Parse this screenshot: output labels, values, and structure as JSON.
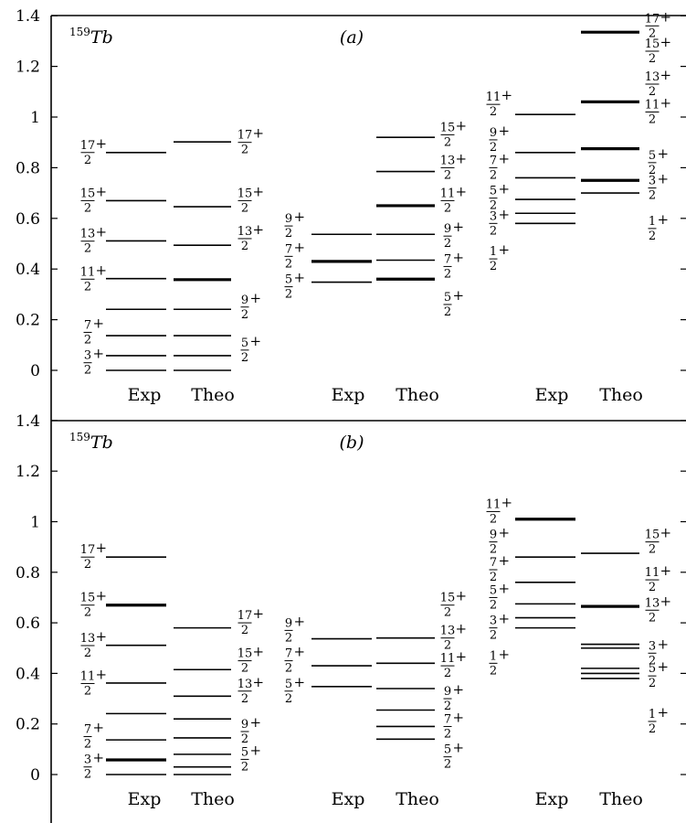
{
  "chart_data": [
    {
      "type": "level-scheme",
      "title": "159Tb",
      "title_parts": {
        "superscript": "159",
        "element": "Tb"
      },
      "panel_label": "(a)",
      "ylim": [
        0,
        1.4
      ],
      "yticks": [
        0,
        0.2,
        0.4,
        0.6,
        0.8,
        1,
        1.2,
        1.4
      ],
      "ytick_labels": [
        "0",
        "0.2",
        "0.4",
        "0.6",
        "0.8",
        "1",
        "1.2",
        "1.4"
      ],
      "grid": false,
      "groups": [
        {
          "exp": {
            "label": "Exp",
            "levels": [
              0,
              0.058,
              0.137,
              0.241,
              0.362,
              0.511,
              0.67,
              0.86
            ],
            "bold_levels": [],
            "spin_labels": [
              {
                "num": "3",
                "den": "2",
                "parity": "+",
                "y": 0.03
              },
              {
                "num": "7",
                "den": "2",
                "parity": "+",
                "y": 0.15
              },
              {
                "num": "11",
                "den": "2",
                "parity": "+",
                "y": 0.36
              },
              {
                "num": "13",
                "den": "2",
                "parity": "+",
                "y": 0.51
              },
              {
                "num": "15",
                "den": "2",
                "parity": "+",
                "y": 0.67
              },
              {
                "num": "17",
                "den": "2",
                "parity": "+",
                "y": 0.86
              }
            ]
          },
          "theo": {
            "label": "Theo",
            "levels": [
              0,
              0.058,
              0.137,
              0.241,
              0.358,
              0.494,
              0.646,
              0.902
            ],
            "bold_levels": [
              0.358
            ],
            "spin_labels": [
              {
                "num": "5",
                "den": "2",
                "parity": "+",
                "y": 0.08
              },
              {
                "num": "9",
                "den": "2",
                "parity": "+",
                "y": 0.25
              },
              {
                "num": "13",
                "den": "2",
                "parity": "+",
                "y": 0.52
              },
              {
                "num": "15",
                "den": "2",
                "parity": "+",
                "y": 0.67
              },
              {
                "num": "17",
                "den": "2",
                "parity": "+",
                "y": 0.9
              }
            ]
          }
        },
        {
          "exp": {
            "label": "Exp",
            "levels": [
              0.348,
              0.43,
              0.537
            ],
            "bold_levels": [
              0.43
            ],
            "spin_labels": [
              {
                "num": "5",
                "den": "2",
                "parity": "+",
                "y": 0.33
              },
              {
                "num": "7",
                "den": "2",
                "parity": "+",
                "y": 0.45
              },
              {
                "num": "9",
                "den": "2",
                "parity": "+",
                "y": 0.57
              }
            ]
          },
          "theo": {
            "label": "Theo",
            "levels": [
              0.36,
              0.435,
              0.537,
              0.65,
              0.785,
              0.92
            ],
            "bold_levels": [
              0.36,
              0.65
            ],
            "spin_labels": [
              {
                "num": "5",
                "den": "2",
                "parity": "+",
                "y": 0.26
              },
              {
                "num": "7",
                "den": "2",
                "parity": "+",
                "y": 0.41
              },
              {
                "num": "9",
                "den": "2",
                "parity": "+",
                "y": 0.53
              },
              {
                "num": "11",
                "den": "2",
                "parity": "+",
                "y": 0.67
              },
              {
                "num": "13",
                "den": "2",
                "parity": "+",
                "y": 0.8
              },
              {
                "num": "15",
                "den": "2",
                "parity": "+",
                "y": 0.93
              }
            ]
          }
        },
        {
          "exp": {
            "label": "Exp",
            "levels": [
              0.58,
              0.62,
              0.675,
              0.76,
              0.86,
              1.01
            ],
            "bold_levels": [],
            "spin_labels": [
              {
                "num": "1",
                "den": "2",
                "parity": "+",
                "y": 0.44
              },
              {
                "num": "3",
                "den": "2",
                "parity": "+",
                "y": 0.58
              },
              {
                "num": "5",
                "den": "2",
                "parity": "+",
                "y": 0.68
              },
              {
                "num": "7",
                "den": "2",
                "parity": "+",
                "y": 0.8
              },
              {
                "num": "9",
                "den": "2",
                "parity": "+",
                "y": 0.91
              },
              {
                "num": "11",
                "den": "2",
                "parity": "+",
                "y": 1.05
              }
            ]
          },
          "theo": {
            "label": "Theo",
            "levels": [
              0.7,
              0.75,
              0.875,
              1.06,
              1.335
            ],
            "bold_levels": [
              0.75,
              0.875,
              1.06,
              1.335
            ],
            "spin_labels": [
              {
                "num": "1",
                "den": "2",
                "parity": "+",
                "y": 0.56
              },
              {
                "num": "3",
                "den": "2",
                "parity": "+",
                "y": 0.72
              },
              {
                "num": "5",
                "den": "2",
                "parity": "+",
                "y": 0.82
              },
              {
                "num": "11",
                "den": "2",
                "parity": "+",
                "y": 1.02
              },
              {
                "num": "13",
                "den": "2",
                "parity": "+",
                "y": 1.13
              },
              {
                "num": "15",
                "den": "2",
                "parity": "+",
                "y": 1.26
              },
              {
                "num": "17",
                "den": "2",
                "parity": "+",
                "y": 1.36
              }
            ]
          }
        }
      ]
    },
    {
      "type": "level-scheme",
      "title": "159Tb",
      "title_parts": {
        "superscript": "159",
        "element": "Tb"
      },
      "panel_label": "(b)",
      "ylim": [
        -0.2,
        1.4
      ],
      "yticks": [
        0,
        0.2,
        0.4,
        0.6,
        0.8,
        1,
        1.2,
        1.4
      ],
      "ytick_labels": [
        "0",
        "0.2",
        "0.4",
        "0.6",
        "0.8",
        "1",
        "1.2",
        "1.4"
      ],
      "grid": false,
      "groups": [
        {
          "exp": {
            "label": "Exp",
            "levels": [
              0,
              0.058,
              0.137,
              0.241,
              0.362,
              0.511,
              0.67,
              0.86
            ],
            "bold_levels": [
              0.058,
              0.67
            ],
            "spin_labels": [
              {
                "num": "3",
                "den": "2",
                "parity": "+",
                "y": 0.03
              },
              {
                "num": "7",
                "den": "2",
                "parity": "+",
                "y": 0.15
              },
              {
                "num": "11",
                "den": "2",
                "parity": "+",
                "y": 0.36
              },
              {
                "num": "13",
                "den": "2",
                "parity": "+",
                "y": 0.51
              },
              {
                "num": "15",
                "den": "2",
                "parity": "+",
                "y": 0.67
              },
              {
                "num": "17",
                "den": "2",
                "parity": "+",
                "y": 0.86
              }
            ]
          },
          "theo": {
            "label": "Theo",
            "levels": [
              0,
              0.03,
              0.08,
              0.145,
              0.22,
              0.31,
              0.415,
              0.58
            ],
            "bold_levels": [],
            "spin_labels": [
              {
                "num": "5",
                "den": "2",
                "parity": "+",
                "y": 0.06
              },
              {
                "num": "9",
                "den": "2",
                "parity": "+",
                "y": 0.17
              },
              {
                "num": "13",
                "den": "2",
                "parity": "+",
                "y": 0.33
              },
              {
                "num": "15",
                "den": "2",
                "parity": "+",
                "y": 0.45
              },
              {
                "num": "17",
                "den": "2",
                "parity": "+",
                "y": 0.6
              }
            ]
          }
        },
        {
          "exp": {
            "label": "Exp",
            "levels": [
              0.348,
              0.43,
              0.537
            ],
            "bold_levels": [],
            "spin_labels": [
              {
                "num": "5",
                "den": "2",
                "parity": "+",
                "y": 0.33
              },
              {
                "num": "7",
                "den": "2",
                "parity": "+",
                "y": 0.45
              },
              {
                "num": "9",
                "den": "2",
                "parity": "+",
                "y": 0.57
              }
            ]
          },
          "theo": {
            "label": "Theo",
            "levels": [
              0.14,
              0.19,
              0.255,
              0.34,
              0.44,
              0.54
            ],
            "bold_levels": [],
            "spin_labels": [
              {
                "num": "5",
                "den": "2",
                "parity": "+",
                "y": 0.07
              },
              {
                "num": "7",
                "den": "2",
                "parity": "+",
                "y": 0.19
              },
              {
                "num": "9",
                "den": "2",
                "parity": "+",
                "y": 0.3
              },
              {
                "num": "11",
                "den": "2",
                "parity": "+",
                "y": 0.43
              },
              {
                "num": "13",
                "den": "2",
                "parity": "+",
                "y": 0.54
              },
              {
                "num": "15",
                "den": "2",
                "parity": "+",
                "y": 0.67
              }
            ]
          }
        },
        {
          "exp": {
            "label": "Exp",
            "levels": [
              0.58,
              0.62,
              0.675,
              0.76,
              0.86,
              1.01
            ],
            "bold_levels": [
              1.01
            ],
            "spin_labels": [
              {
                "num": "1",
                "den": "2",
                "parity": "+",
                "y": 0.44
              },
              {
                "num": "3",
                "den": "2",
                "parity": "+",
                "y": 0.58
              },
              {
                "num": "5",
                "den": "2",
                "parity": "+",
                "y": 0.7
              },
              {
                "num": "7",
                "den": "2",
                "parity": "+",
                "y": 0.81
              },
              {
                "num": "9",
                "den": "2",
                "parity": "+",
                "y": 0.92
              },
              {
                "num": "11",
                "den": "2",
                "parity": "+",
                "y": 1.04
              }
            ]
          },
          "theo": {
            "label": "Theo",
            "levels": [
              0.38,
              0.4,
              0.42,
              0.5,
              0.515,
              0.665,
              0.875
            ],
            "bold_levels": [
              0.665
            ],
            "spin_labels": [
              {
                "num": "1",
                "den": "2",
                "parity": "+",
                "y": 0.21
              },
              {
                "num": "5",
                "den": "2",
                "parity": "+",
                "y": 0.39
              },
              {
                "num": "3",
                "den": "2",
                "parity": "+",
                "y": 0.48
              },
              {
                "num": "13",
                "den": "2",
                "parity": "+",
                "y": 0.65
              },
              {
                "num": "11",
                "den": "2",
                "parity": "+",
                "y": 0.77
              },
              {
                "num": "15",
                "den": "2",
                "parity": "+",
                "y": 0.92
              }
            ]
          }
        }
      ]
    }
  ]
}
